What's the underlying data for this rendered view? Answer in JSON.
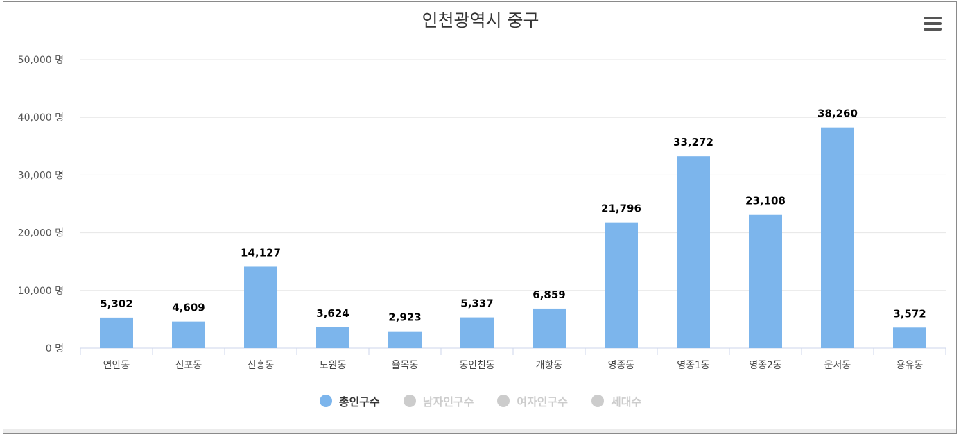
{
  "chart_data": {
    "type": "bar",
    "title": "인천광역시 중구",
    "categories": [
      "연안동",
      "신포동",
      "신흥동",
      "도원동",
      "율목동",
      "동인천동",
      "개항동",
      "영종동",
      "영종1동",
      "영종2동",
      "운서동",
      "용유동"
    ],
    "series": [
      {
        "name": "총인구수",
        "values": [
          5302,
          4609,
          14127,
          3624,
          2923,
          5337,
          6859,
          21796,
          33272,
          23108,
          38260,
          3572
        ]
      }
    ],
    "value_labels": [
      "5,302",
      "4,609",
      "14,127",
      "3,624",
      "2,923",
      "5,337",
      "6,859",
      "21,796",
      "33,272",
      "23,108",
      "38,260",
      "3,572"
    ],
    "ylim": [
      0,
      50000
    ],
    "yticks": [
      0,
      10000,
      20000,
      30000,
      40000,
      50000
    ],
    "ytick_labels": [
      "0 명",
      "10,000 명",
      "20,000 명",
      "30,000 명",
      "40,000 명",
      "50,000 명"
    ],
    "grid": true,
    "legend_position": "bottom-center",
    "legend": [
      {
        "label": "총인구수",
        "active": true,
        "color": "#7cb5ec"
      },
      {
        "label": "남자인구수",
        "active": false,
        "color": "#cccccc"
      },
      {
        "label": "여자인구수",
        "active": false,
        "color": "#cccccc"
      },
      {
        "label": "세대수",
        "active": false,
        "color": "#cccccc"
      }
    ],
    "bar_color": "#7cb5ec"
  },
  "menu": {
    "icon": "hamburger-menu-icon"
  }
}
